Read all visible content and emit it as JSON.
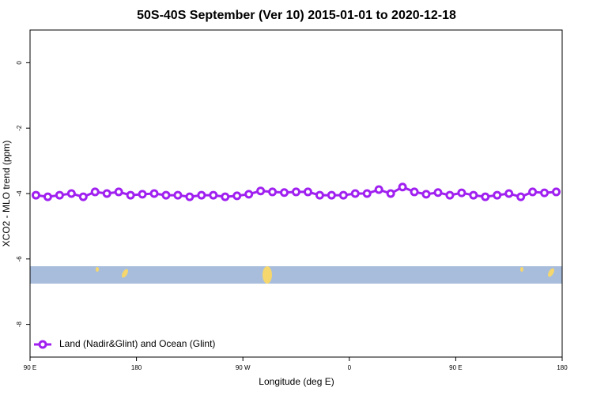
{
  "chart_data": {
    "type": "line",
    "title": "50S-40S September (Ver 10)   2015-01-01 to 2020-12-18",
    "x_label": "Longitude (deg E)",
    "y_label": "XCO2 - MLO trend (ppm)",
    "x": [
      95,
      105,
      115,
      125,
      135,
      145,
      155,
      165,
      175,
      185,
      195,
      205,
      215,
      225,
      235,
      245,
      255,
      265,
      275,
      285,
      295,
      305,
      315,
      325,
      335,
      345,
      355,
      365,
      375,
      385,
      395,
      405,
      415,
      425,
      435,
      445,
      455,
      465,
      475,
      485,
      495,
      505,
      515,
      525,
      535
    ],
    "series": [
      {
        "name": "Land (Nadir&Glint) and Ocean (Glint)",
        "color": "#a020f0",
        "values": [
          -4.05,
          -4.1,
          -4.05,
          -4.0,
          -4.1,
          -3.95,
          -4.0,
          -3.95,
          -4.05,
          -4.02,
          -4.0,
          -4.05,
          -4.05,
          -4.1,
          -4.05,
          -4.05,
          -4.1,
          -4.07,
          -4.02,
          -3.92,
          -3.95,
          -3.97,
          -3.95,
          -3.95,
          -4.05,
          -4.05,
          -4.05,
          -4.0,
          -4.0,
          -3.88,
          -4.0,
          -3.8,
          -3.95,
          -4.02,
          -3.97,
          -4.05,
          -3.98,
          -4.05,
          -4.1,
          -4.05,
          -4.0,
          -4.1,
          -3.95,
          -3.98,
          -3.95
        ]
      }
    ],
    "xlim": [
      90,
      540
    ],
    "xticks": [
      {
        "value": 90,
        "label": "90 E"
      },
      180,
      {
        "value": 270,
        "label": "90 W"
      },
      {
        "value": 360,
        "label": "0"
      },
      {
        "value": 450,
        "label": "90 E"
      },
      {
        "value": 540,
        "label": "180"
      }
    ],
    "ylim": [
      -9,
      1
    ],
    "yticks": [
      0,
      -2,
      -4,
      -6,
      -8
    ],
    "legend": "bottom-left"
  }
}
